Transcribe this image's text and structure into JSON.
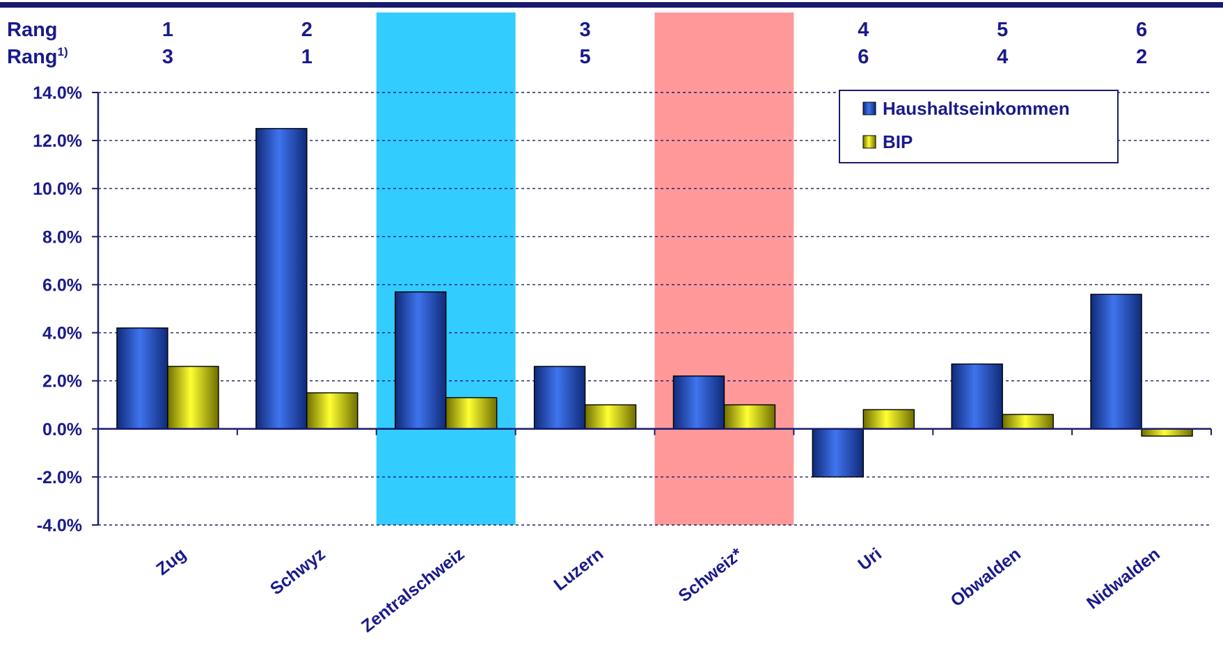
{
  "chart_data": {
    "type": "bar",
    "categories": [
      "Zug",
      "Schwyz",
      "Zentralschweiz",
      "Luzern",
      "Schweiz*",
      "Uri",
      "Obwalden",
      "Nidwalden"
    ],
    "highlighted_categories": {
      "Zentralschweiz": "#33ccff",
      "Schweiz*": "#ff9999"
    },
    "series": [
      {
        "name": "Haushaltseinkommen",
        "color": "#2d5fd6",
        "values": [
          4.2,
          12.5,
          5.7,
          2.6,
          2.2,
          -2.0,
          2.7,
          5.6
        ]
      },
      {
        "name": "BIP",
        "color": "#e8e800",
        "values": [
          2.6,
          1.5,
          1.3,
          1.0,
          1.0,
          0.8,
          0.6,
          -0.3
        ]
      }
    ],
    "ylim": [
      -4.0,
      14.0
    ],
    "yticks": [
      "14.0%",
      "12.0%",
      "10.0%",
      "8.0%",
      "6.0%",
      "4.0%",
      "2.0%",
      "0.0%",
      "-2.0%",
      "-4.0%"
    ],
    "ytick_values": [
      14,
      12,
      10,
      8,
      6,
      4,
      2,
      0,
      -2,
      -4
    ],
    "grid": "dashed horizontal",
    "legend_position": "top-right",
    "rank_rows": [
      {
        "label": "Rang",
        "label_sup": "",
        "values": [
          "1",
          "2",
          "",
          "3",
          "",
          "4",
          "5",
          "6"
        ]
      },
      {
        "label": "Rang",
        "label_sup": "1)",
        "values": [
          "3",
          "1",
          "",
          "5",
          "",
          "6",
          "4",
          "2"
        ]
      }
    ],
    "text_color": "#1a1a8c",
    "top_rule_color": "#1a1a6e"
  }
}
